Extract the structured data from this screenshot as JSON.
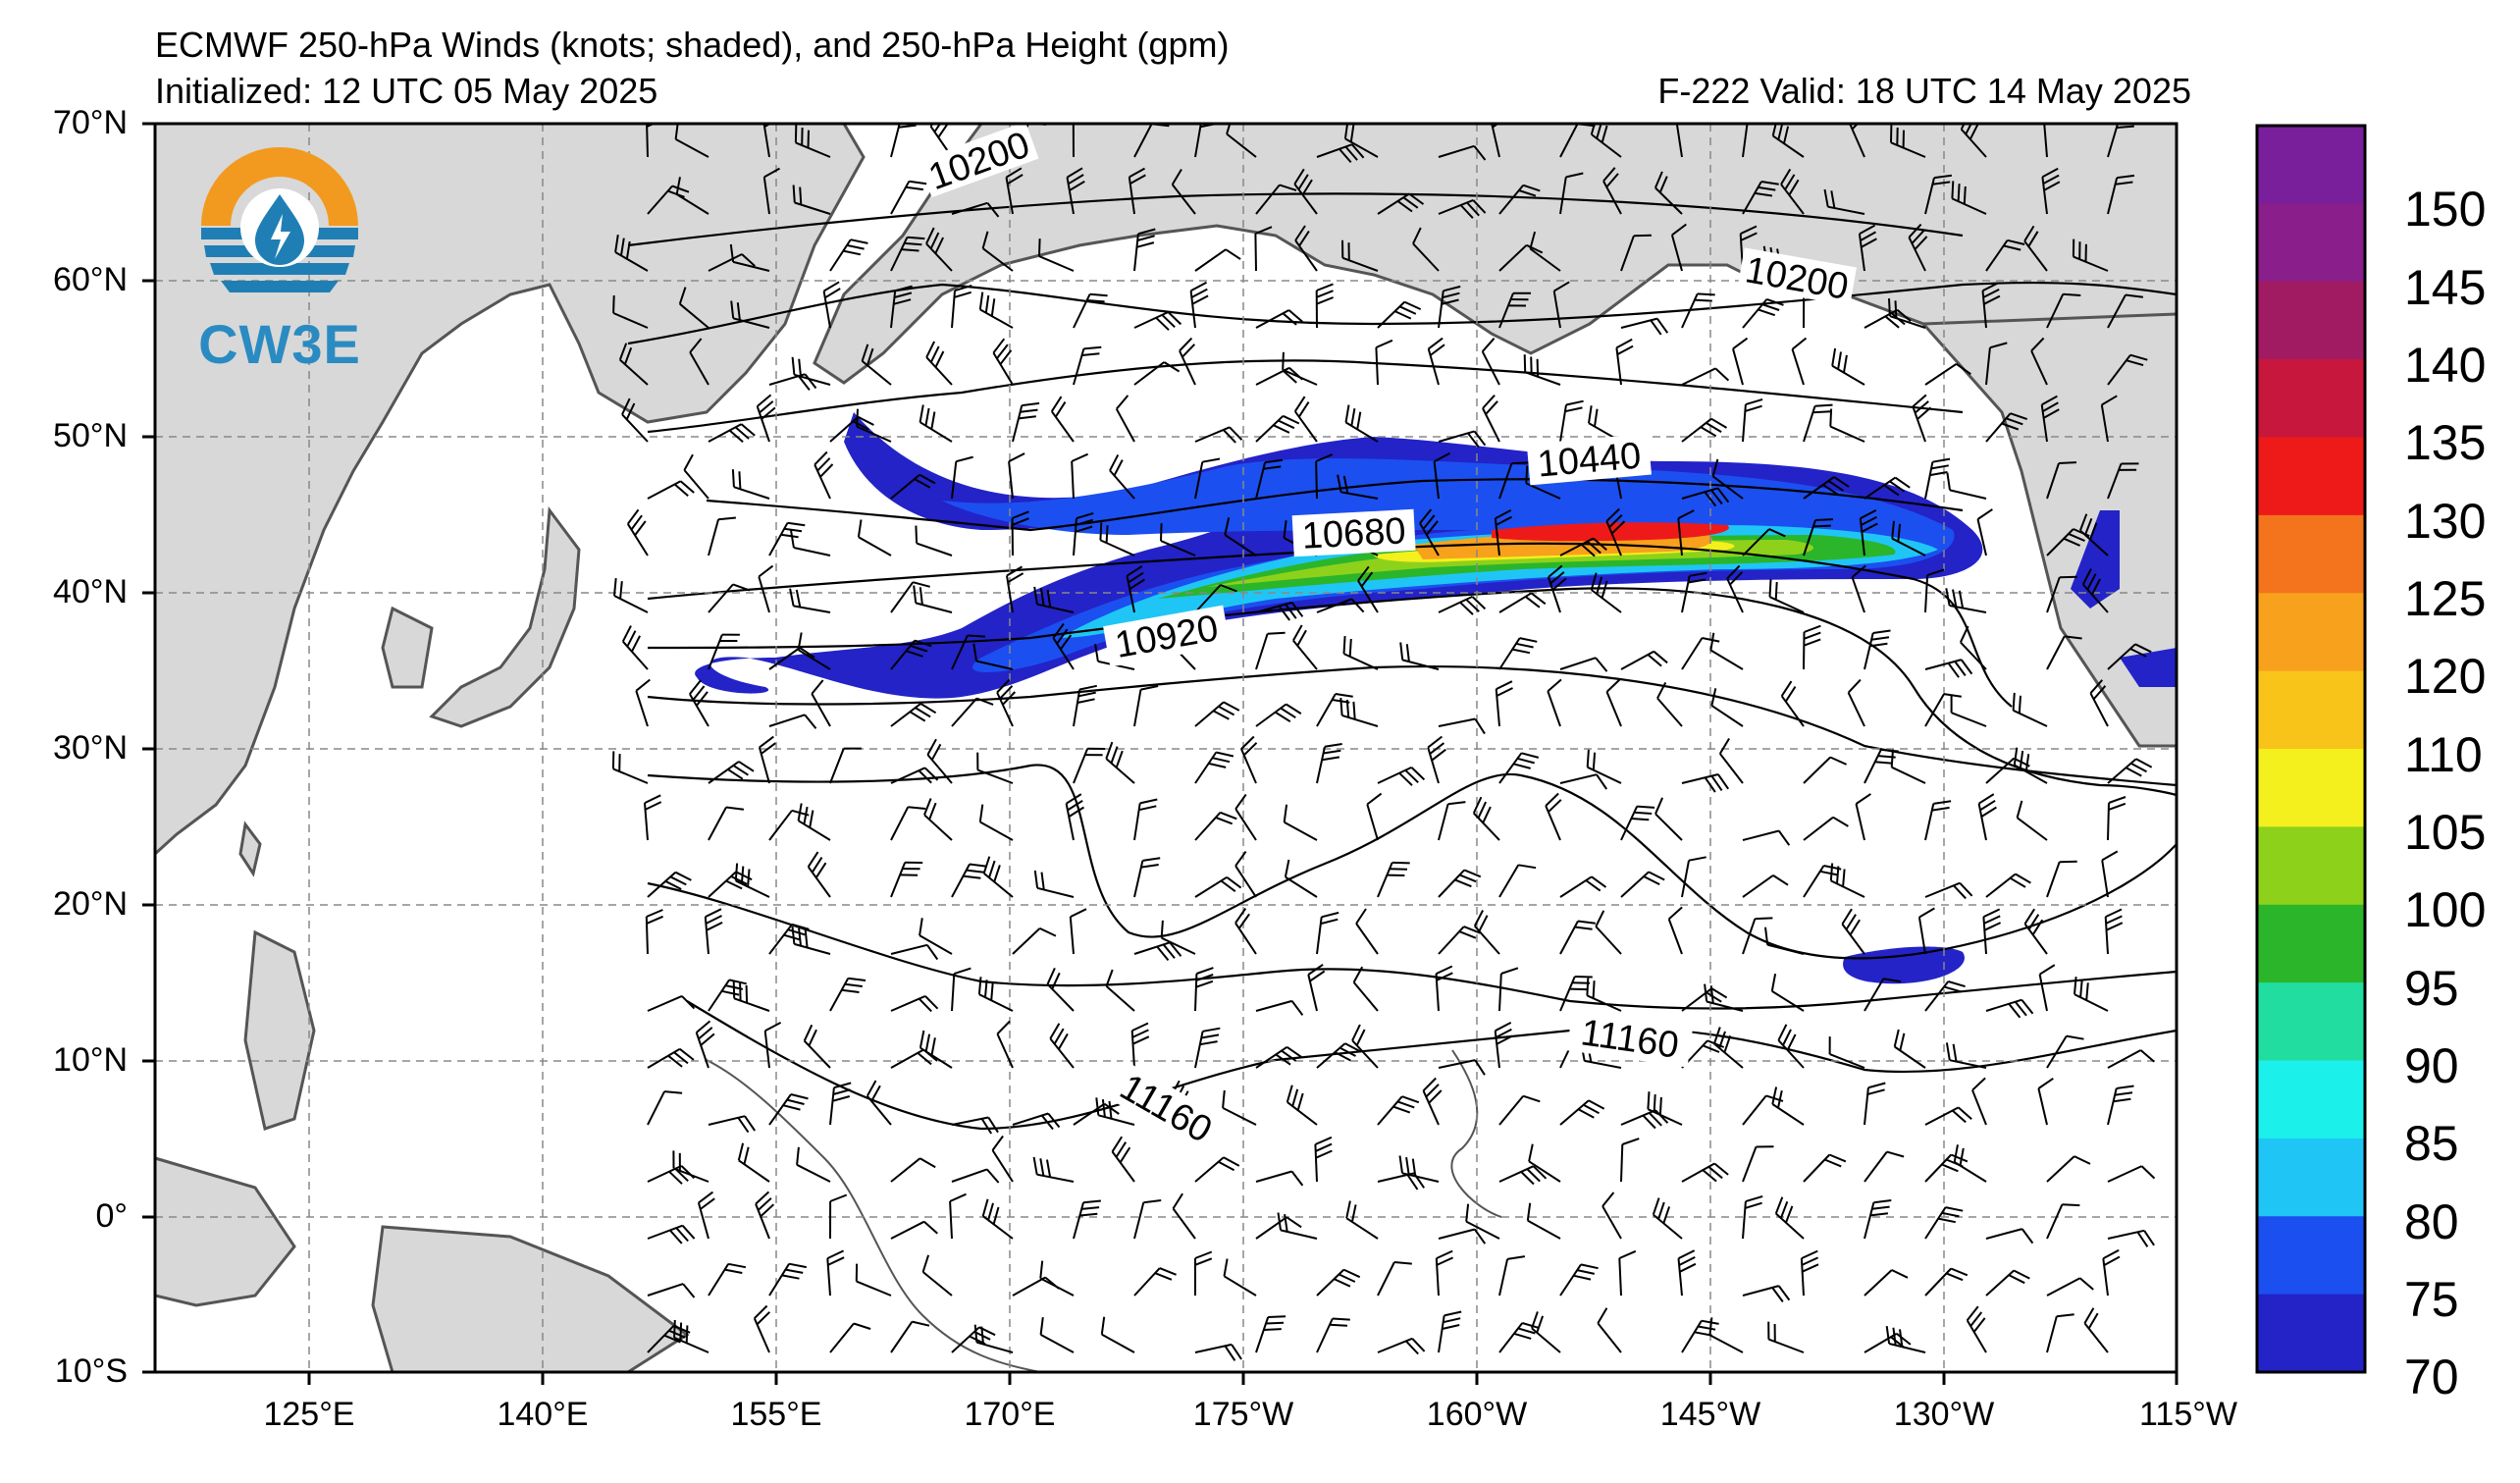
{
  "header": {
    "title": "ECMWF 250-hPa Winds (knots; shaded), and 250-hPa Height (gpm)",
    "initialized": "Initialized: 12 UTC 05 May 2025",
    "valid": "F-222  Valid: 18 UTC 14 May 2025"
  },
  "logo": {
    "text": "CW3E",
    "icon": "water-drop-sun-icon"
  },
  "axes": {
    "lat_labels": [
      "70°N",
      "60°N",
      "50°N",
      "40°N",
      "30°N",
      "20°N",
      "10°N",
      "0°",
      "10°S"
    ],
    "lon_labels": [
      "125°E",
      "140°E",
      "155°E",
      "170°E",
      "175°W",
      "160°W",
      "145°W",
      "130°W",
      "115°W"
    ]
  },
  "contour_labels": [
    "10200",
    "10200",
    "10440",
    "10680",
    "10920",
    "11160",
    "11160"
  ],
  "colorbar": {
    "labels": [
      "150",
      "145",
      "140",
      "135",
      "130",
      "125",
      "120",
      "110",
      "105",
      "100",
      "95",
      "90",
      "85",
      "80",
      "75",
      "70"
    ],
    "colors": [
      "#7a1f9c",
      "#8a1e8a",
      "#a11b63",
      "#c8173c",
      "#ee1a1a",
      "#f4731d",
      "#f8a11d",
      "#f8c419",
      "#f4f01d",
      "#8ed11b",
      "#2bb52a",
      "#21dda0",
      "#1cf0ea",
      "#1fc6f5",
      "#1c4ff0",
      "#2323c8"
    ]
  },
  "map_colors": {
    "land": "#d8d8d8",
    "coast": "#555555",
    "grid": "#888888"
  }
}
